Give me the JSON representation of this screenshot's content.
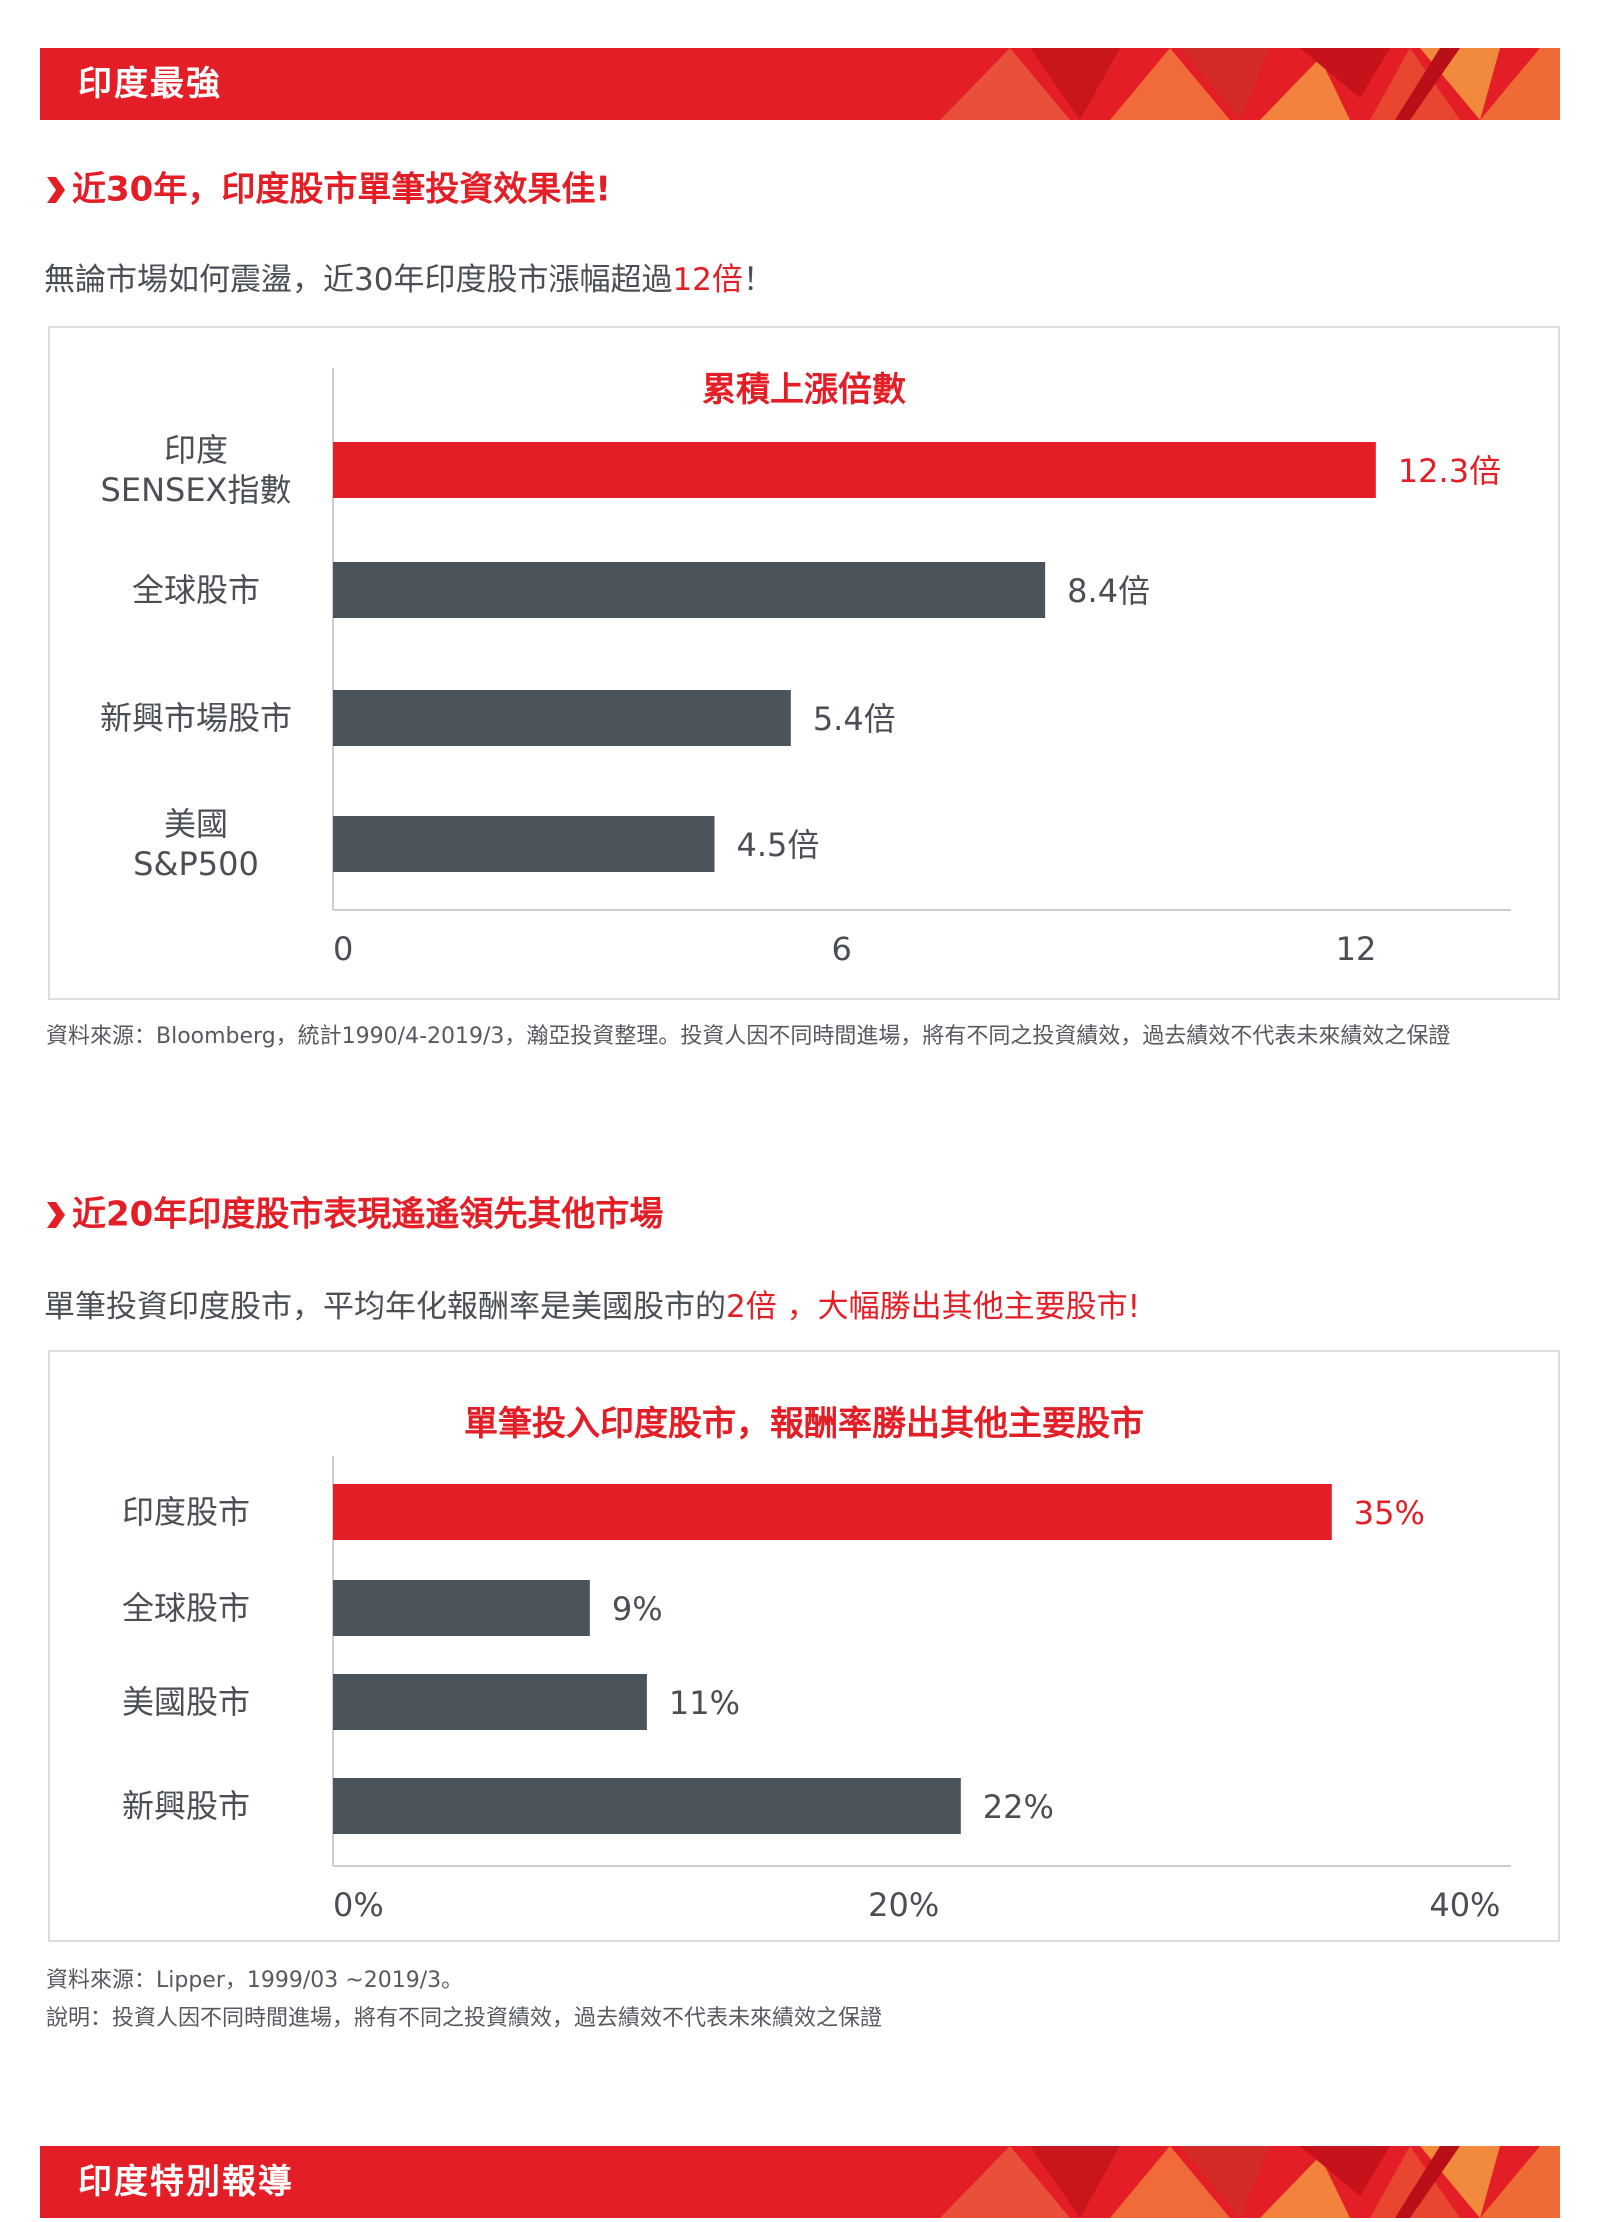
{
  "colors": {
    "accent": "#e41e26",
    "bar": "#4b545b",
    "text": "#555a60"
  },
  "top_band": {
    "title": "印度最強"
  },
  "bottom_band": {
    "title": "印度特別報導"
  },
  "section1": {
    "heading": "近30年，印度股市單筆投資效果佳!",
    "lead_before": "無論市場如何震盪，近30年印度股市漲幅超過",
    "lead_highlight": "12倍",
    "lead_after": "！",
    "note": "資料來源：Bloomberg，統計1990/4-2019/3，瀚亞投資整理。投資人因不同時間進場，將有不同之投資績效，過去績效不代表未來績效之保證"
  },
  "section2": {
    "heading": "近20年印度股市表現遙遙領先其他市場",
    "lead_before": "單筆投資印度股市，平均年化報酬率是美國股市的",
    "lead_highlight": "2倍 ，大幅勝出其他主要股市!",
    "note_line1": "資料來源：Lipper，1999/03 ~2019/3。",
    "note_line2": "說明：投資人因不同時間進場，將有不同之投資績效，過去績效不代表未來績效之保證"
  },
  "chart_data": [
    {
      "type": "bar",
      "orientation": "horizontal",
      "title": "累積上漲倍數",
      "categories": [
        [
          "印度",
          "SENSEX指數"
        ],
        [
          "全球股市"
        ],
        [
          "新興市場股市"
        ],
        [
          "美國",
          "S&P500"
        ]
      ],
      "values": [
        12.3,
        8.4,
        5.4,
        4.5
      ],
      "value_labels": [
        "12.3倍",
        "8.4倍",
        "5.4倍",
        "4.5倍"
      ],
      "highlight_index": 0,
      "xlim": [
        0,
        13.8
      ],
      "xticks": [
        0,
        6,
        12
      ],
      "xtick_labels": [
        "0",
        "6",
        "12"
      ],
      "grid": false,
      "legend": "none"
    },
    {
      "type": "bar",
      "orientation": "horizontal",
      "title": "單筆投入印度股市，報酬率勝出其他主要股市",
      "categories": [
        [
          "印度股市"
        ],
        [
          "全球股市"
        ],
        [
          "美國股市"
        ],
        [
          "新興股市"
        ]
      ],
      "values": [
        35,
        9,
        11,
        22
      ],
      "value_labels": [
        "35%",
        "9%",
        "11%",
        "22%"
      ],
      "highlight_index": 0,
      "xlim": [
        0,
        41
      ],
      "xticks": [
        0,
        20,
        40
      ],
      "xtick_labels": [
        "0%",
        "20%",
        "40%"
      ],
      "grid": false,
      "legend": "none"
    }
  ]
}
